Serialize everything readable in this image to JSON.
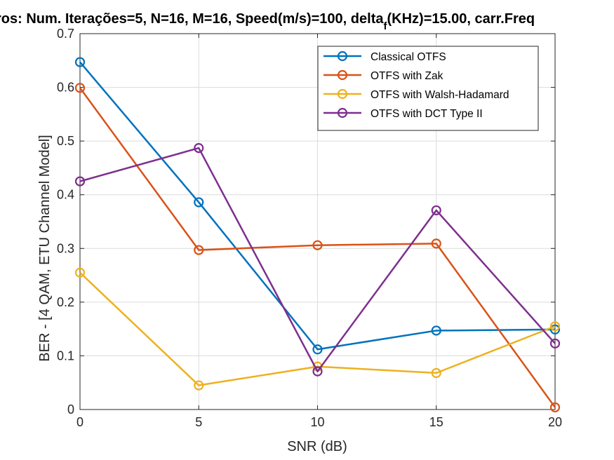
{
  "chart_data": {
    "type": "line",
    "title_parts": {
      "main": "ros: Num. Iterações=5, N=16, M=16, Speed(m/s)=100, delta",
      "sub": "f",
      "tail": "(KHz)=15.00, carr.Freq"
    },
    "xlabel": "SNR (dB)",
    "ylabel": "BER - [4 QAM, ETU Channel Model]",
    "x": [
      0,
      5,
      10,
      15,
      20
    ],
    "xlim": [
      0,
      20
    ],
    "ylim": [
      0,
      0.7
    ],
    "xticks": [
      "0",
      "5",
      "10",
      "15",
      "20"
    ],
    "yticks": [
      "0",
      "0.1",
      "0.2",
      "0.3",
      "0.4",
      "0.5",
      "0.6",
      "0.7"
    ],
    "grid": true,
    "legend_position": "top-right",
    "series": [
      {
        "name": "Classical OTFS",
        "color": "#0072BD",
        "values": [
          0.647,
          0.386,
          0.112,
          0.147,
          0.149
        ]
      },
      {
        "name": "OTFS with Zak",
        "color": "#D95319",
        "values": [
          0.599,
          0.297,
          0.306,
          0.309,
          0.004
        ]
      },
      {
        "name": "OTFS with Walsh-Hadamard",
        "color": "#EDB120",
        "values": [
          0.255,
          0.045,
          0.08,
          0.068,
          0.155
        ]
      },
      {
        "name": "OTFS with DCT Type II",
        "color": "#7E2F8E",
        "values": [
          0.425,
          0.487,
          0.071,
          0.371,
          0.123
        ]
      }
    ]
  }
}
